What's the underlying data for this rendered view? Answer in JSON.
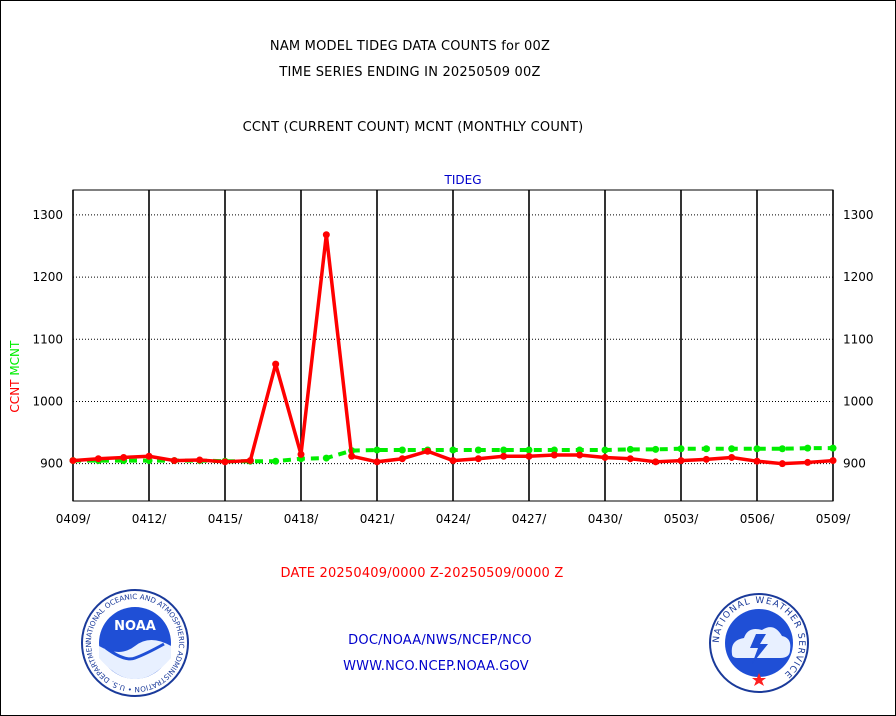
{
  "header": {
    "title_line1": "NAM MODEL TIDEG DATA COUNTS for 00Z",
    "title_line2": "TIME SERIES ENDING IN 20250509 00Z",
    "subtitle": "CCNT (CURRENT COUNT) MCNT (MONTHLY COUNT)"
  },
  "footer": {
    "date_range": "DATE 20250409/0000 Z-20250509/0000 Z",
    "org_path": "DOC/NOAA/NWS/NCEP/NCO",
    "website": "WWW.NCO.NCEP.NOAA.GOV"
  },
  "logos": {
    "noaa": {
      "text": "NOAA",
      "ring_text": "NATIONAL OCEANIC AND ATMOSPHERIC ADMINISTRATION • U.S. DEPARTMENT OF COMMERCE"
    },
    "nws": {
      "ring_text": "NATIONAL WEATHER SERVICE"
    }
  },
  "colors": {
    "ccnt": "#ff0000",
    "mcnt": "#00ee00",
    "title_blue": "#0000cc",
    "axis": "#000000"
  },
  "chart_data": {
    "type": "line",
    "title": "TIDEG",
    "ylabel_parts": [
      "CCNT",
      "MCNT"
    ],
    "ylim": [
      840,
      1340
    ],
    "yticks": [
      900,
      1000,
      1100,
      1200,
      1300
    ],
    "xlim": [
      0,
      30
    ],
    "xticks": [
      0,
      3,
      6,
      9,
      12,
      15,
      18,
      21,
      24,
      27,
      30
    ],
    "xtick_labels": [
      "0409/",
      "0412/",
      "0415/",
      "0418/",
      "0421/",
      "0424/",
      "0427/",
      "0430/",
      "0503/",
      "0506/",
      "0509/"
    ],
    "grid": true,
    "x": [
      0,
      1,
      2,
      3,
      4,
      5,
      6,
      7,
      8,
      9,
      10,
      11,
      12,
      13,
      14,
      15,
      16,
      17,
      18,
      19,
      20,
      21,
      22,
      23,
      24,
      25,
      26,
      27,
      28,
      29,
      30
    ],
    "series": [
      {
        "name": "CCNT",
        "values": [
          905,
          908,
          910,
          912,
          905,
          906,
          903,
          905,
          1060,
          915,
          1268,
          912,
          903,
          908,
          920,
          905,
          908,
          912,
          912,
          914,
          914,
          910,
          908,
          903,
          905,
          907,
          910,
          904,
          900,
          902,
          905
        ]
      },
      {
        "name": "MCNT",
        "values": [
          905,
          905,
          905,
          905,
          905,
          905,
          904,
          904,
          904,
          908,
          909,
          921,
          922,
          922,
          922,
          922,
          922,
          922,
          922,
          922,
          922,
          922,
          923,
          923,
          924,
          924,
          924,
          924,
          924,
          925,
          925
        ]
      }
    ]
  }
}
